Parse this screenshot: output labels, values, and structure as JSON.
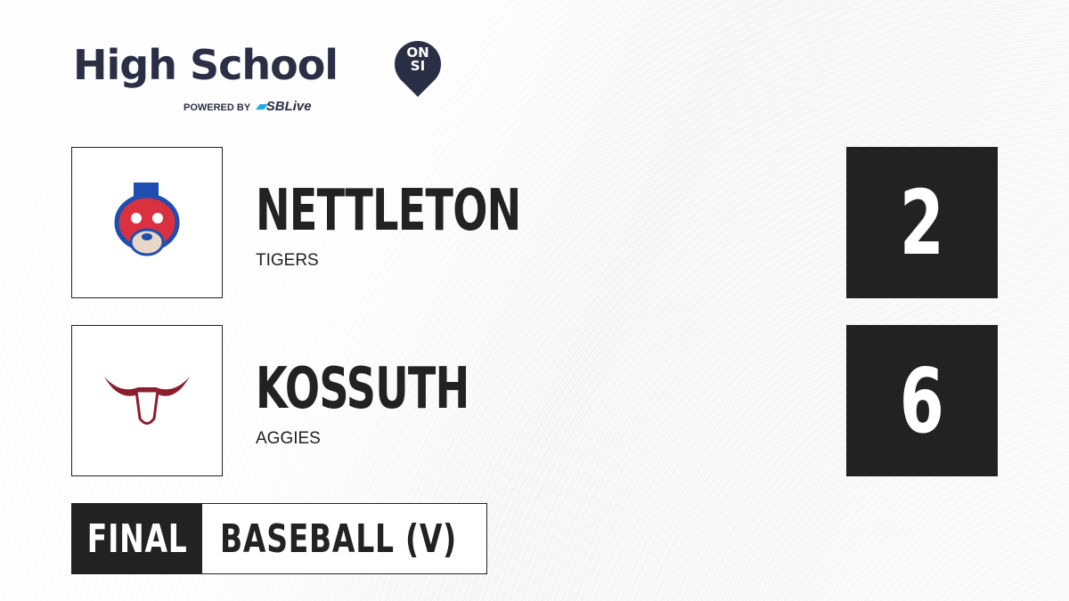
{
  "brand": {
    "title": "High School",
    "badge": "ON SI",
    "powered_by": "POWERED BY",
    "partner": "SBLive",
    "colors": {
      "navy": "#2b2f45",
      "partner_blue": "#1eaadf"
    }
  },
  "teams": [
    {
      "name": "NETTLETON",
      "mascot": "TIGERS",
      "score": "2",
      "logo_icon": "tiger-icon"
    },
    {
      "name": "KOSSUTH",
      "mascot": "AGGIES",
      "score": "6",
      "logo_icon": "longhorn-icon"
    }
  ],
  "status": "FINAL",
  "sport": "BASEBALL (V)"
}
